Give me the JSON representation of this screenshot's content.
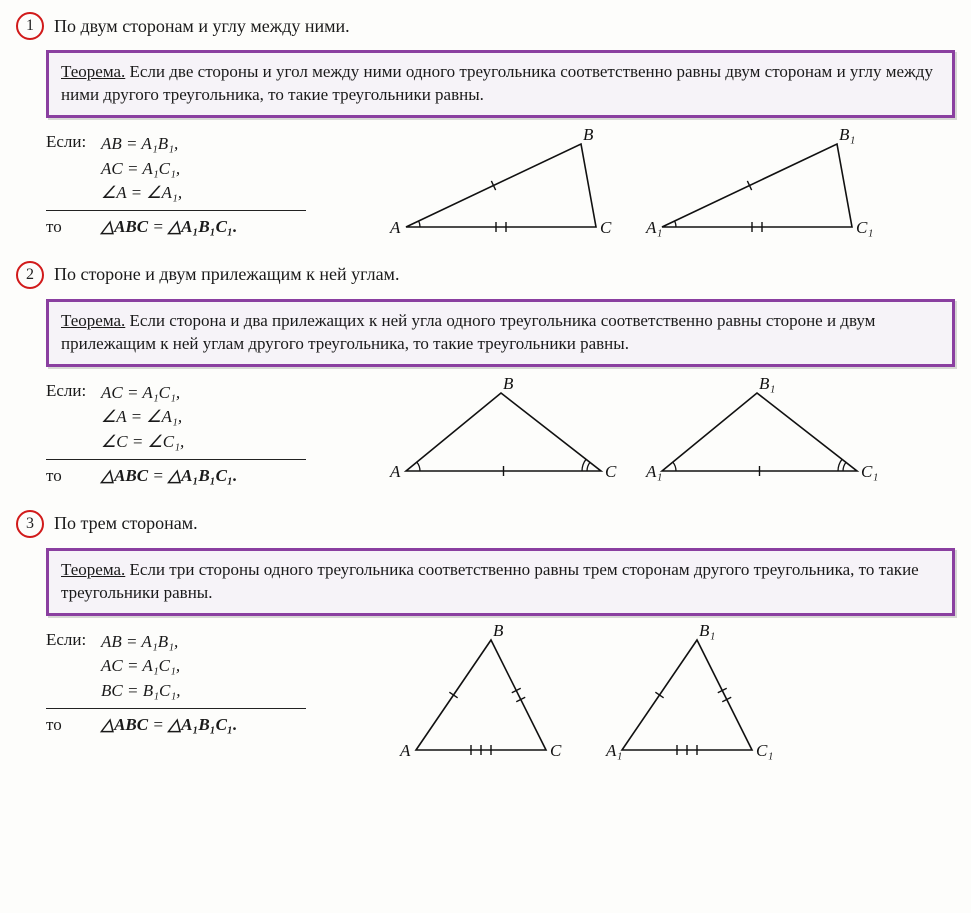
{
  "sections": [
    {
      "num": "1",
      "title": "По двум сторонам и углу между ними.",
      "theorem_label": "Теорема.",
      "theorem_text": " Если две стороны и угол между ними одного треугольника соответственно равны двум сторонам и углу между ними другого треугольника, то такие треугольники равны.",
      "if_label": "Если:",
      "conditions": [
        "AB = A₁B₁,",
        "AC = A₁C₁,",
        "∠A = ∠A₁,"
      ],
      "then_label": "то",
      "conclusion_lhs": "△ABC",
      "conclusion_eq": " = ",
      "conclusion_rhs": "△A₁B₁C₁.",
      "triangle": {
        "type": "obtuse-right",
        "A": [
          10,
          95
        ],
        "B": [
          185,
          12
        ],
        "C": [
          200,
          95
        ],
        "labels": {
          "A": "A",
          "B": "B",
          "C": "C"
        },
        "tick_AB": 1,
        "tick_AC": 2,
        "tick_BC": 0,
        "arc_A": 1,
        "arc_C": 0,
        "colors": {
          "stroke": "#111"
        }
      },
      "triangle2_labels": {
        "A": "A₁",
        "B": "B₁",
        "C": "C₁"
      }
    },
    {
      "num": "2",
      "title": "По стороне и двум прилежащим к ней углам.",
      "theorem_label": "Теорема.",
      "theorem_text": " Если сторона и два прилежащих к ней угла одного треугольника соответственно равны стороне и двум прилежащим к ней углам другого треугольника, то такие треугольники равны.",
      "if_label": "Если:",
      "conditions": [
        "AC = A₁C₁,",
        "∠A = ∠A₁,",
        "∠C = ∠C₁,"
      ],
      "then_label": "то",
      "conclusion_lhs": "△ABC",
      "conclusion_eq": " = ",
      "conclusion_rhs": "△A₁B₁C₁.",
      "triangle": {
        "type": "wide",
        "A": [
          10,
          90
        ],
        "B": [
          105,
          12
        ],
        "C": [
          205,
          90
        ],
        "labels": {
          "A": "A",
          "B": "B",
          "C": "C"
        },
        "tick_AB": 0,
        "tick_AC": 1,
        "tick_BC": 0,
        "arc_A": 1,
        "arc_C": 2,
        "colors": {
          "stroke": "#111"
        }
      },
      "triangle2_labels": {
        "A": "A₁",
        "B": "B₁",
        "C": "C₁"
      }
    },
    {
      "num": "3",
      "title": "По трем сторонам.",
      "theorem_label": "Теорема.",
      "theorem_text": " Если три стороны одного треугольника соответственно равны трем сторонам другого треугольника, то такие треугольники равны.",
      "if_label": "Если:",
      "conditions": [
        "AB = A₁B₁,",
        "AC = A₁C₁,",
        "BC = B₁C₁,"
      ],
      "then_label": "то",
      "conclusion_lhs": "△ABC",
      "conclusion_eq": " = ",
      "conclusion_rhs": "△A₁B₁C₁.",
      "triangle": {
        "type": "acute",
        "A": [
          20,
          120
        ],
        "B": [
          95,
          10
        ],
        "C": [
          150,
          120
        ],
        "labels": {
          "A": "A",
          "B": "B",
          "C": "C"
        },
        "tick_AB": 1,
        "tick_AC": 3,
        "tick_BC": 2,
        "arc_A": 0,
        "arc_C": 0,
        "colors": {
          "stroke": "#111"
        }
      },
      "triangle2_labels": {
        "A": "A₁",
        "B": "B₁",
        "C": "C₁"
      }
    }
  ],
  "style": {
    "circle_border": "#d11a1a",
    "box_border": "#8a3fa0",
    "box_bg": "#f6f3f8",
    "page_bg": "#fdfdfb",
    "text_color": "#1a1a1a",
    "stroke": "#111",
    "font_body_pt": 13,
    "font_math_pt": 13,
    "font_label_pt": 13
  }
}
